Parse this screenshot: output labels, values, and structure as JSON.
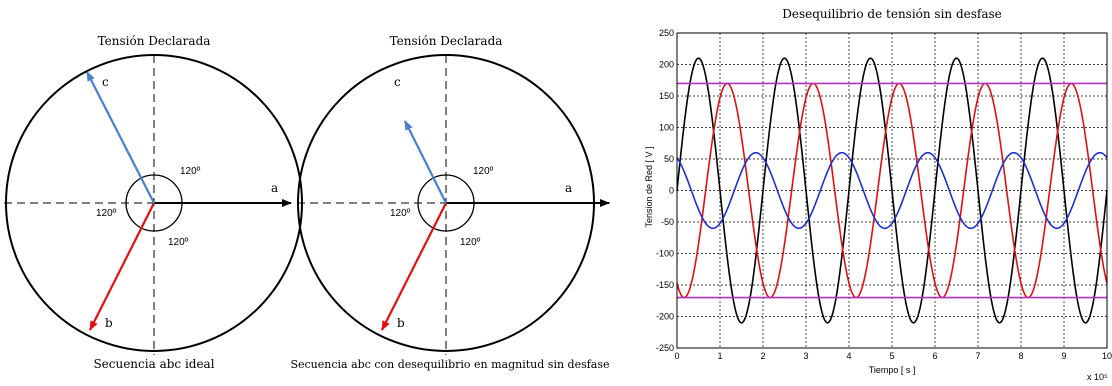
{
  "left_diagram": {
    "title": "Tensión Declarada",
    "caption": "Secuencia abc ideal",
    "labels": {
      "a": "a",
      "b": "b",
      "c": "c"
    },
    "angles": [
      "120º",
      "120º",
      "120º"
    ]
  },
  "middle_diagram": {
    "title": "Tensión Declarada",
    "caption": "Secuencia abc con desequilibrio en magnitud sin desfase",
    "labels": {
      "a": "a",
      "b": "b",
      "c": "c"
    },
    "angles": [
      "120º",
      "120º",
      "120º"
    ]
  },
  "colors": {
    "phase_a": "#000000",
    "phase_b": "#e01010",
    "phase_c": "#4a7fd0",
    "limit_line": "#b030c0",
    "wave_blue": "#1f2fd6"
  },
  "chart_data": {
    "type": "line",
    "title": "Desequilibrio de tensión sin desfase",
    "xlabel": "Tiempo [ s ]",
    "ylabel": "Tension de Red [ V ]",
    "x_multiplier_label": "x 10⁵",
    "xlim": [
      0,
      10
    ],
    "ylim": [
      -250,
      250
    ],
    "xticks": [
      0,
      1,
      2,
      3,
      4,
      5,
      6,
      7,
      8,
      9,
      10
    ],
    "yticks": [
      -250,
      -200,
      -150,
      -100,
      -50,
      0,
      50,
      100,
      150,
      200,
      250
    ],
    "grid": true,
    "series": [
      {
        "color": "black",
        "amplitude": 210,
        "period": 2,
        "phase_deg": 0
      },
      {
        "color": "red",
        "amplitude": 170,
        "period": 2,
        "phase_deg": -120
      },
      {
        "color": "blue",
        "amplitude": 60,
        "period": 2,
        "phase_deg": 120
      },
      {
        "color": "magenta",
        "constant": 170
      },
      {
        "color": "magenta",
        "constant": -170
      }
    ]
  }
}
